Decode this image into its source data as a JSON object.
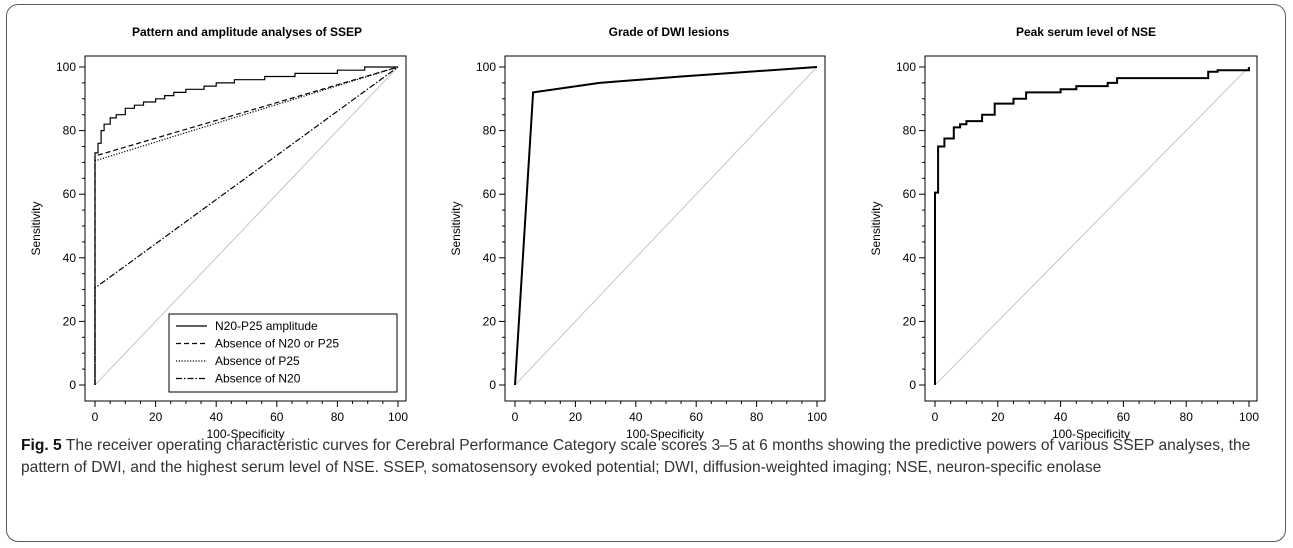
{
  "caption": {
    "label": "Fig. 5",
    "text": "The receiver operating characteristic curves for Cerebral Performance Category scale scores 3–5 at 6 months showing the predictive powers of various SSEP analyses, the pattern of DWI, and the highest serum level of NSE. SSEP, somatosensory evoked potential; DWI, diffusion-weighted imaging; NSE, neuron-specific enolase"
  },
  "colors": {
    "curve": "#000000",
    "diagonal": "#b8b8b8",
    "axis": "#000000",
    "border": "#5a5a5a"
  },
  "chart_data": [
    {
      "type": "line",
      "title": "Pattern and amplitude analyses of SSEP",
      "xlabel": "100-Specificity",
      "ylabel": "Sensitivity",
      "xlim": [
        0,
        100
      ],
      "ylim": [
        0,
        100
      ],
      "xticks": [
        0,
        20,
        40,
        60,
        80,
        100
      ],
      "yticks": [
        0,
        20,
        40,
        60,
        80,
        100
      ],
      "grid": false,
      "diagonal": true,
      "legend_position": "bottom-right",
      "series": [
        {
          "name": "N20-P25 amplitude",
          "dash": "solid",
          "step": true,
          "x": [
            0,
            0,
            1,
            1,
            2,
            2,
            3,
            3,
            5,
            5,
            7,
            7,
            10,
            10,
            13,
            13,
            16,
            16,
            20,
            20,
            23,
            23,
            26,
            26,
            30,
            30,
            36,
            36,
            40,
            40,
            46,
            46,
            56,
            56,
            66,
            66,
            80,
            80,
            89,
            89,
            100
          ],
          "y": [
            0,
            73,
            73,
            76,
            76,
            80,
            80,
            82,
            82,
            84,
            84,
            85,
            85,
            87,
            87,
            88,
            88,
            89,
            89,
            90,
            90,
            91,
            91,
            92,
            92,
            93,
            93,
            94,
            94,
            95,
            95,
            96,
            96,
            97,
            97,
            98,
            98,
            99,
            99,
            100,
            100
          ]
        },
        {
          "name": "Absence of N20 or P25",
          "dash": "dashed",
          "step": false,
          "x": [
            0,
            0,
            100
          ],
          "y": [
            0,
            72,
            100
          ]
        },
        {
          "name": "Absence of P25",
          "dash": "dotted",
          "step": false,
          "x": [
            0,
            0,
            100
          ],
          "y": [
            0,
            70.5,
            100
          ]
        },
        {
          "name": "Absence of N20",
          "dash": "dashdot",
          "step": false,
          "x": [
            0,
            0,
            100
          ],
          "y": [
            0,
            30.5,
            100
          ]
        }
      ]
    },
    {
      "type": "line",
      "title": "Grade of DWI lesions",
      "xlabel": "100-Specificity",
      "ylabel": "Sensitivity",
      "xlim": [
        0,
        100
      ],
      "ylim": [
        0,
        100
      ],
      "xticks": [
        0,
        20,
        40,
        60,
        80,
        100
      ],
      "yticks": [
        0,
        20,
        40,
        60,
        80,
        100
      ],
      "grid": false,
      "diagonal": true,
      "series": [
        {
          "dash": "solid",
          "step": false,
          "x": [
            0,
            6,
            28,
            55,
            100
          ],
          "y": [
            0,
            92,
            95,
            97,
            100
          ]
        }
      ]
    },
    {
      "type": "line",
      "title": "Peak serum level of NSE",
      "xlabel": "100-Specificity",
      "ylabel": "Sensitivity",
      "xlim": [
        0,
        100
      ],
      "ylim": [
        0,
        100
      ],
      "xticks": [
        0,
        20,
        40,
        60,
        80,
        100
      ],
      "yticks": [
        0,
        20,
        40,
        60,
        80,
        100
      ],
      "grid": false,
      "diagonal": true,
      "series": [
        {
          "dash": "solid",
          "step": true,
          "x": [
            0,
            0,
            1,
            1,
            3,
            3,
            6,
            6,
            8,
            8,
            10,
            10,
            12,
            12,
            15,
            15,
            19,
            19,
            25,
            25,
            29,
            29,
            40,
            40,
            45,
            45,
            55,
            55,
            58,
            58,
            61,
            61,
            87,
            87,
            90,
            90,
            100,
            100
          ],
          "y": [
            0,
            60.5,
            60.5,
            75,
            75,
            77.5,
            77.5,
            81,
            81,
            82,
            82,
            83,
            83,
            83,
            83,
            85,
            85,
            88.5,
            88.5,
            90,
            90,
            92,
            92,
            93,
            93,
            94,
            94,
            95,
            95,
            96.5,
            96.5,
            96.5,
            96.5,
            98.5,
            98.5,
            99,
            99,
            100
          ]
        }
      ]
    }
  ]
}
